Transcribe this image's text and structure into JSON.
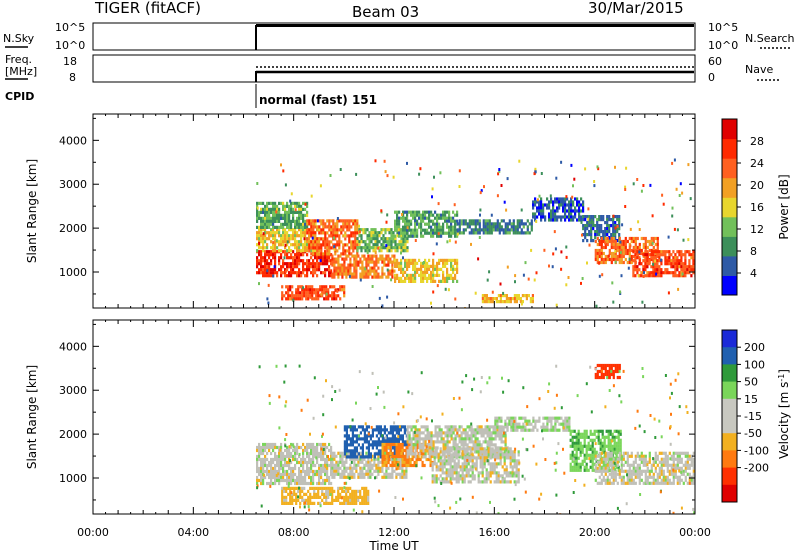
{
  "header": {
    "radar": "TIGER (fitACF)",
    "beam": "Beam 03",
    "date": "30/Mar/2015"
  },
  "status_panels": {
    "nsky": {
      "left_label": "N.Sky",
      "left_ticks": [
        "10^5",
        "10^0"
      ],
      "right_ticks": [
        "10^5",
        "10^0"
      ],
      "right_label": "N.Search",
      "start_time": "06:30"
    },
    "freq": {
      "left_label_1": "Freq.",
      "left_label_2": "[MHz]",
      "left_ticks": [
        "18",
        "8"
      ],
      "right_ticks": [
        "60",
        "0"
      ],
      "right_label": "Nave",
      "start_time": "06:30"
    },
    "cpid": {
      "label": "CPID",
      "program": "normal (fast) 151"
    }
  },
  "colors": {
    "power": [
      "#0000ff",
      "#2e5aa6",
      "#3c8f5a",
      "#72c05a",
      "#e8d62e",
      "#f2a024",
      "#ff6020",
      "#ff2a00",
      "#e00000"
    ],
    "velocity": [
      "#1a2ad8",
      "#2060b0",
      "#2f9a3a",
      "#7ad65a",
      "#c8c8c0",
      "#c8c8c0",
      "#f2b020",
      "#ff7a10",
      "#ff3000",
      "#e00000"
    ],
    "ground_scatter": "#c0c0b8"
  },
  "chart_data": [
    {
      "type": "heatmap",
      "name": "power",
      "ylabel": "Slant Range [km]",
      "yticks": [
        1000,
        2000,
        3000,
        4000
      ],
      "ylim": [
        180,
        4600
      ],
      "xlim": [
        "00:00",
        "24:00"
      ],
      "colorbar": {
        "label": "Power [dB]",
        "ticks": [
          4,
          8,
          12,
          16,
          20,
          24,
          28
        ],
        "range": [
          0,
          32
        ]
      },
      "regions": [
        {
          "t": [
            6.5,
            9.5
          ],
          "r": [
            900,
            1500
          ],
          "v": 27
        },
        {
          "t": [
            6.5,
            9.0
          ],
          "r": [
            1500,
            2000
          ],
          "v": 17
        },
        {
          "t": [
            6.5,
            8.5
          ],
          "r": [
            2000,
            2600
          ],
          "v": 11
        },
        {
          "t": [
            8.5,
            10.5
          ],
          "r": [
            1400,
            2200
          ],
          "v": 23
        },
        {
          "t": [
            7.5,
            10.0
          ],
          "r": [
            400,
            700
          ],
          "v": 25
        },
        {
          "t": [
            9.5,
            12.0
          ],
          "r": [
            900,
            1400
          ],
          "v": 22
        },
        {
          "t": [
            10.5,
            12.5
          ],
          "r": [
            1500,
            2000
          ],
          "v": 12
        },
        {
          "t": [
            12.0,
            14.5
          ],
          "r": [
            800,
            1300
          ],
          "v": 17
        },
        {
          "t": [
            12.0,
            14.5
          ],
          "r": [
            1800,
            2400
          ],
          "v": 10
        },
        {
          "t": [
            14.5,
            17.5
          ],
          "r": [
            1900,
            2200
          ],
          "v": 8
        },
        {
          "t": [
            15.5,
            17.5
          ],
          "r": [
            300,
            500
          ],
          "v": 18
        },
        {
          "t": [
            17.5,
            19.5
          ],
          "r": [
            2200,
            2700
          ],
          "v": 5
        },
        {
          "t": [
            19.5,
            21.0
          ],
          "r": [
            1700,
            2300
          ],
          "v": 7
        },
        {
          "t": [
            20.0,
            22.5
          ],
          "r": [
            1200,
            1800
          ],
          "v": 23
        },
        {
          "t": [
            21.5,
            24.0
          ],
          "r": [
            900,
            1500
          ],
          "v": 25
        }
      ]
    },
    {
      "type": "heatmap",
      "name": "velocity",
      "ylabel": "Slant Range [km]",
      "xlabel": "Time UT",
      "yticks": [
        1000,
        2000,
        3000,
        4000
      ],
      "ylim": [
        180,
        4600
      ],
      "xticks": [
        "00:00",
        "04:00",
        "08:00",
        "12:00",
        "16:00",
        "20:00",
        "00:00"
      ],
      "xlim": [
        "00:00",
        "24:00"
      ],
      "colorbar": {
        "label_main": "Velocity [m s",
        "label_sup": "-1",
        "label_end": "]",
        "ticks": [
          200,
          100,
          50,
          15,
          -15,
          -50,
          -100,
          -200
        ]
      },
      "regions": [
        {
          "t": [
            6.5,
            9.5
          ],
          "r": [
            900,
            1800
          ],
          "v": 0
        },
        {
          "t": [
            9.5,
            12.5
          ],
          "r": [
            1000,
            1600
          ],
          "v": 0
        },
        {
          "t": [
            7.5,
            11.0
          ],
          "r": [
            400,
            800
          ],
          "v": -30
        },
        {
          "t": [
            10.0,
            12.5
          ],
          "r": [
            1500,
            2200
          ],
          "v": 150
        },
        {
          "t": [
            11.5,
            13.5
          ],
          "r": [
            1300,
            1800
          ],
          "v": -60
        },
        {
          "t": [
            12.5,
            16.5
          ],
          "r": [
            1500,
            2200
          ],
          "v": 0
        },
        {
          "t": [
            13.5,
            17.0
          ],
          "r": [
            900,
            1700
          ],
          "v": 0
        },
        {
          "t": [
            16.0,
            19.0
          ],
          "r": [
            2100,
            2400
          ],
          "v": 10
        },
        {
          "t": [
            19.0,
            21.0
          ],
          "r": [
            1200,
            2100
          ],
          "v": 40
        },
        {
          "t": [
            20.0,
            21.0
          ],
          "r": [
            3300,
            3600
          ],
          "v": -180
        },
        {
          "t": [
            20.0,
            24.0
          ],
          "r": [
            900,
            1600
          ],
          "v": 0
        }
      ]
    }
  ]
}
